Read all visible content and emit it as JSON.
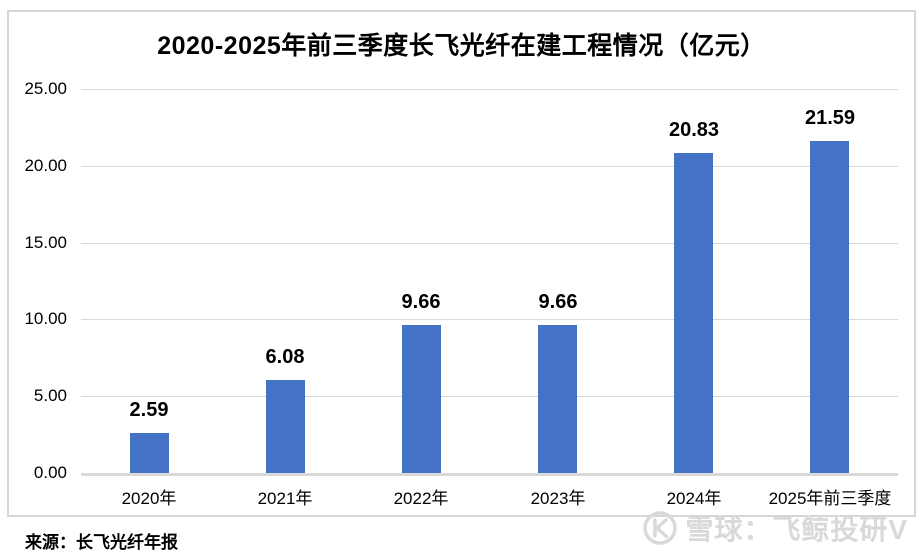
{
  "chart_data": {
    "type": "bar",
    "title": "2020-2025年前三季度长飞光纤在建工程情况（亿元）",
    "categories": [
      "2020年",
      "2021年",
      "2022年",
      "2023年",
      "2024年",
      "2025年前三季度"
    ],
    "values": [
      2.59,
      6.08,
      9.66,
      9.66,
      20.83,
      21.59
    ],
    "value_labels": [
      "2.59",
      "6.08",
      "9.66",
      "9.66",
      "20.83",
      "21.59"
    ],
    "xlabel": "",
    "ylabel": "",
    "ylim": [
      0,
      25
    ],
    "ytick_step": 5,
    "yticks": [
      "25.00",
      "20.00",
      "15.00",
      "10.00",
      "5.00",
      "0.00"
    ],
    "grid": true,
    "legend_position": "none",
    "bar_color": "#4472c4",
    "gridline_color": "#d9d9d9"
  },
  "footer": {
    "source_label": "来源：长飞光纤年报"
  },
  "watermark": {
    "logo_icon": "xueqiu-logo-icon",
    "text": "雪球：飞鲸投研V",
    "color": "#d9d9d9"
  }
}
